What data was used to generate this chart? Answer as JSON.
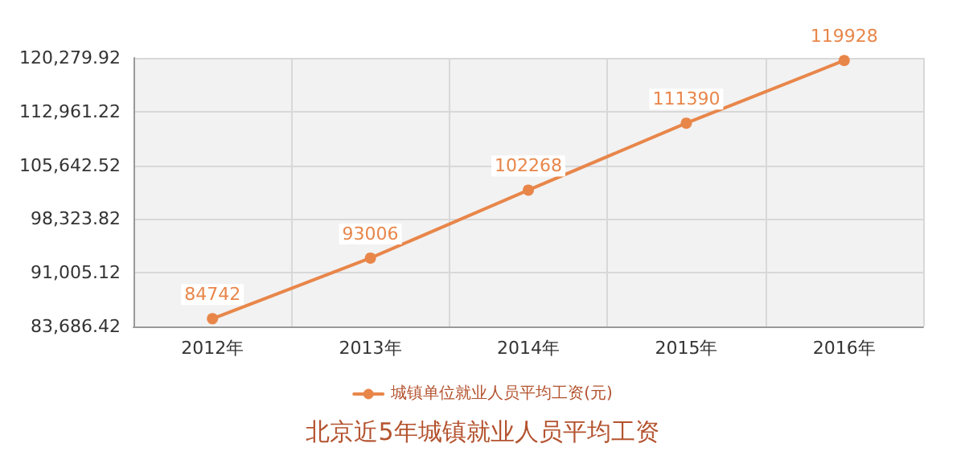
{
  "chart_data": {
    "type": "line",
    "title": "北京近5年城镇就业人员平均工资",
    "categories": [
      "2012年",
      "2013年",
      "2014年",
      "2015年",
      "2016年"
    ],
    "series": [
      {
        "name": "城镇单位就业人员平均工资(元)",
        "color": "#e8864a",
        "values": [
          84742,
          93006,
          102268,
          111390,
          119928
        ]
      }
    ],
    "ylim": [
      83686.42,
      120279.92
    ],
    "yticks": [
      {
        "value": 83686.42,
        "label": "83,686.42"
      },
      {
        "value": 91005.12,
        "label": "91,005.12"
      },
      {
        "value": 98323.82,
        "label": "98,323.82"
      },
      {
        "value": 105642.52,
        "label": "105,642.52"
      },
      {
        "value": 112961.22,
        "label": "112,961.22"
      },
      {
        "value": 120279.92,
        "label": "120,279.92"
      }
    ],
    "grid": true,
    "legend": "bottom",
    "marker": "circle",
    "line_style": "solid",
    "data_labels": true
  }
}
